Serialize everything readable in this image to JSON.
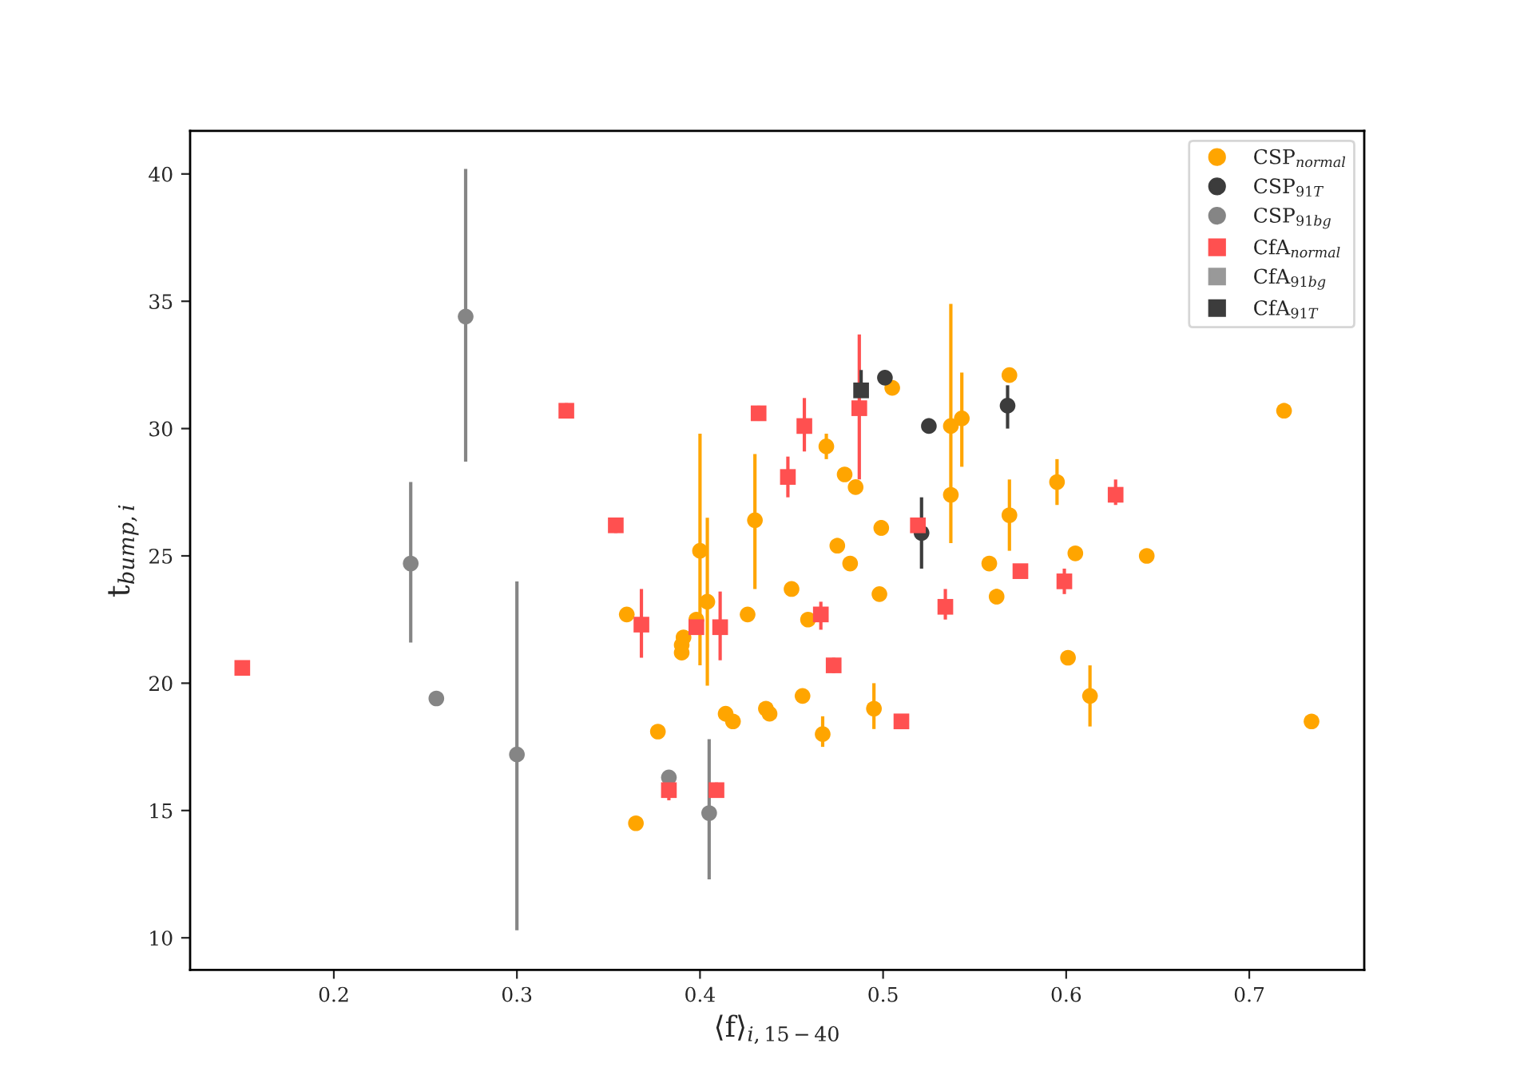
{
  "chart_data": {
    "type": "scatter",
    "xlabel": "⟨f⟩$_{i,15−40}$",
    "ylabel": "t$_{bump,i}$",
    "xlim": [
      0.1215,
      0.7628
    ],
    "ylim": [
      8.74,
      41.69
    ],
    "xticks": [
      0.2,
      0.3,
      0.4,
      0.5,
      0.6,
      0.7
    ],
    "yticks": [
      10,
      15,
      20,
      25,
      30,
      35,
      40
    ],
    "legend": "top right",
    "series": [
      {
        "name": "CSP$_{normal}$",
        "color": "#ffa500",
        "marker": "circle",
        "x": [
          0.4,
          0.404,
          0.398,
          0.391,
          0.39,
          0.39,
          0.36,
          0.43,
          0.426,
          0.45,
          0.459,
          0.377,
          0.414,
          0.418,
          0.436,
          0.438,
          0.456,
          0.467,
          0.365,
          0.469,
          0.505,
          0.569,
          0.537,
          0.537,
          0.543,
          0.479,
          0.485,
          0.595,
          0.569,
          0.499,
          0.475,
          0.482,
          0.605,
          0.558,
          0.562,
          0.498,
          0.601,
          0.613,
          0.495,
          0.719,
          0.644,
          0.734
        ],
        "values": [
          25.2,
          23.2,
          22.5,
          21.8,
          21.5,
          21.2,
          22.7,
          26.4,
          22.7,
          23.7,
          22.5,
          18.1,
          18.8,
          18.5,
          19.0,
          18.8,
          19.5,
          18.0,
          14.5,
          29.3,
          31.6,
          32.1,
          30.1,
          27.4,
          30.4,
          28.2,
          27.7,
          27.9,
          26.6,
          26.1,
          25.4,
          24.7,
          25.1,
          24.7,
          23.4,
          23.5,
          21.0,
          19.5,
          19.0,
          30.7,
          25.0,
          18.5
        ],
        "errors": [
          [
            20.7,
            29.8
          ],
          [
            19.9,
            26.5
          ],
          null,
          null,
          null,
          null,
          null,
          [
            23.7,
            29.0
          ],
          null,
          null,
          null,
          null,
          0.3,
          null,
          null,
          null,
          null,
          [
            17.5,
            18.7
          ],
          null,
          0.5,
          null,
          null,
          [
            25.5,
            34.9
          ],
          null,
          [
            28.5,
            32.2
          ],
          null,
          null,
          [
            27.0,
            28.8
          ],
          [
            25.2,
            28.0
          ],
          0.3,
          0.3,
          null,
          null,
          null,
          0.3,
          null,
          0.2,
          [
            18.3,
            20.7
          ],
          [
            18.2,
            20.0
          ],
          0.3,
          null,
          null
        ]
      },
      {
        "name": "CSP$_{91T}$",
        "color": "#3c3c3c",
        "marker": "circle",
        "x": [
          0.501,
          0.525,
          0.568,
          0.521
        ],
        "values": [
          32.0,
          30.1,
          30.9,
          25.9
        ],
        "errors": [
          null,
          0.3,
          [
            30.0,
            31.7
          ],
          [
            24.5,
            27.3
          ]
        ]
      },
      {
        "name": "CSP$_{91bg}$",
        "color": "#858585",
        "marker": "circle",
        "x": [
          0.272,
          0.242,
          0.256,
          0.3,
          0.383,
          0.405
        ],
        "values": [
          34.4,
          24.7,
          19.4,
          17.2,
          16.3,
          14.9
        ],
        "errors": [
          [
            28.7,
            40.2
          ],
          [
            21.6,
            27.9
          ],
          null,
          [
            10.3,
            24.0
          ],
          null,
          [
            12.3,
            17.8
          ]
        ]
      },
      {
        "name": "CfA$_{normal}$",
        "color": "#ff5050",
        "marker": "square",
        "x": [
          0.15,
          0.327,
          0.354,
          0.368,
          0.398,
          0.411,
          0.432,
          0.457,
          0.448,
          0.466,
          0.383,
          0.409,
          0.487,
          0.519,
          0.473,
          0.51,
          0.534,
          0.575,
          0.599,
          0.627
        ],
        "values": [
          20.6,
          30.7,
          26.2,
          22.3,
          22.2,
          22.2,
          30.6,
          30.1,
          28.1,
          22.7,
          15.8,
          15.8,
          30.8,
          26.2,
          20.7,
          18.5,
          23.0,
          24.4,
          24.0,
          27.4
        ],
        "errors": [
          0.2,
          0.3,
          0.3,
          [
            21.0,
            23.7
          ],
          0.3,
          [
            20.9,
            23.6
          ],
          0.3,
          [
            29.1,
            31.2
          ],
          [
            27.3,
            28.9
          ],
          [
            22.1,
            23.2
          ],
          0.4,
          0.3,
          [
            28.0,
            33.7
          ],
          0.3,
          0.3,
          null,
          [
            22.5,
            23.7
          ],
          null,
          [
            23.5,
            24.5
          ],
          [
            27.0,
            28.0
          ]
        ]
      },
      {
        "name": "CfA$_{91bg}$",
        "color": "#999999",
        "marker": "square"
      },
      {
        "name": "CfA$_{91T}$",
        "color": "#3c3c3c",
        "marker": "square",
        "x": [
          0.488
        ],
        "values": [
          31.5
        ],
        "errors": [
          [
            31.5,
            32.3
          ]
        ]
      }
    ]
  }
}
